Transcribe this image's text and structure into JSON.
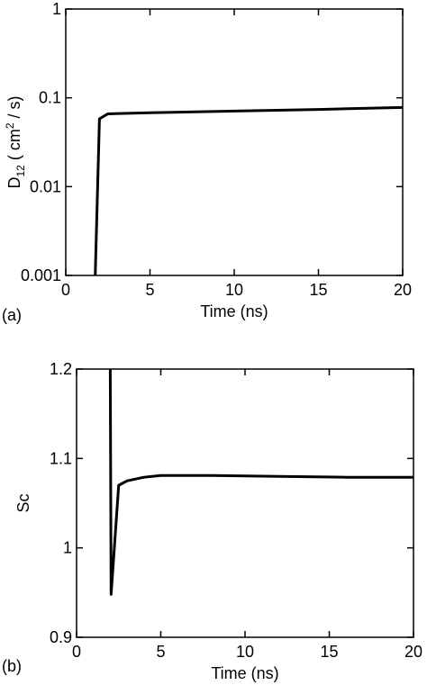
{
  "chart_data": [
    {
      "type": "line",
      "panel_label": "(a)",
      "xlabel": "Time (ns)",
      "ylabel": {
        "base": "D",
        "sub": "12",
        "unit": "( cm",
        "sup": "2",
        "unit_end": " / s)"
      },
      "log_y": true,
      "xlim": [
        0,
        20
      ],
      "xticks": [
        0,
        5,
        10,
        15,
        20
      ],
      "ylim": [
        0.001,
        1
      ],
      "yticks": [
        0.001,
        0.01,
        0.1,
        1
      ],
      "series": [
        {
          "color": "#000000",
          "x": [
            1.75,
            2.0,
            2.5,
            5,
            10,
            15,
            20
          ],
          "values": [
            0.001,
            0.058,
            0.066,
            0.068,
            0.071,
            0.074,
            0.078
          ]
        }
      ]
    },
    {
      "type": "line",
      "panel_label": "(b)",
      "xlabel": "Time (ns)",
      "ylabel": {
        "base": "Sc"
      },
      "log_y": false,
      "xlim": [
        0,
        20
      ],
      "xticks": [
        0,
        5,
        10,
        15,
        20
      ],
      "ylim": [
        0.9,
        1.2
      ],
      "yticks": [
        0.9,
        1,
        1.1,
        1.2
      ],
      "series": [
        {
          "color": "#000000",
          "x": [
            2.0,
            2.05,
            2.5,
            3,
            4,
            5,
            8,
            12,
            16,
            20
          ],
          "values": [
            1.2,
            0.948,
            1.07,
            1.075,
            1.079,
            1.081,
            1.081,
            1.08,
            1.079,
            1.079
          ]
        }
      ]
    }
  ]
}
